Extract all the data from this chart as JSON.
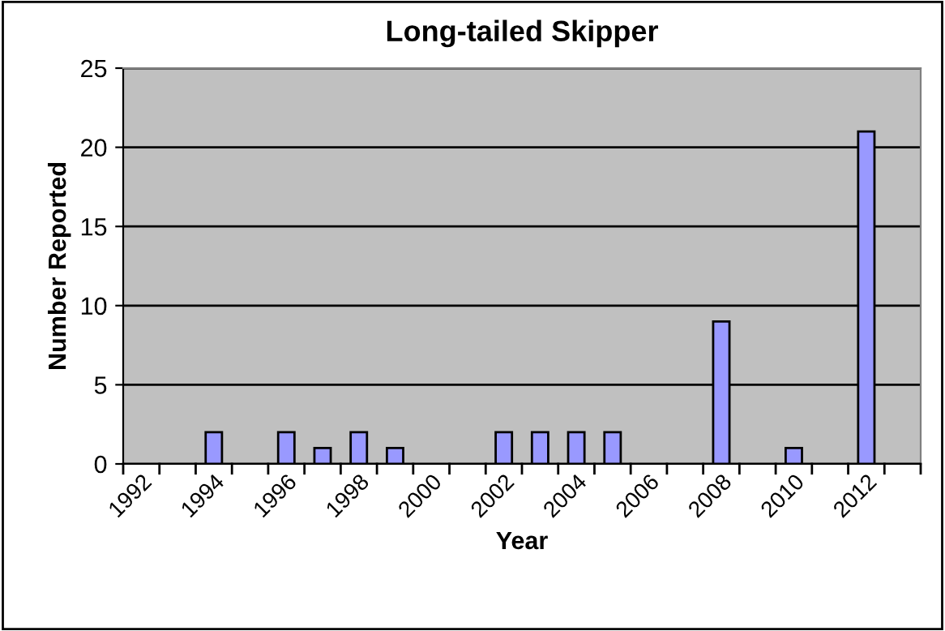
{
  "chart_data": {
    "type": "bar",
    "title": "Long-tailed Skipper",
    "xlabel": "Year",
    "ylabel": "Number Reported",
    "categories": [
      "1992",
      null,
      "1994",
      null,
      "1996",
      null,
      "1998",
      null,
      "2000",
      null,
      "2002",
      null,
      "2004",
      null,
      "2006",
      null,
      "2008",
      null,
      "2010",
      null,
      "2012",
      null
    ],
    "values": [
      null,
      null,
      2,
      null,
      2,
      1,
      2,
      1,
      null,
      null,
      2,
      2,
      2,
      2,
      null,
      null,
      9,
      null,
      1,
      null,
      21,
      null
    ],
    "color": "#9999ff",
    "ylim": [
      0,
      25
    ],
    "yticks": [
      0,
      5,
      10,
      15,
      20,
      25
    ],
    "grid": "y",
    "legend": false
  }
}
